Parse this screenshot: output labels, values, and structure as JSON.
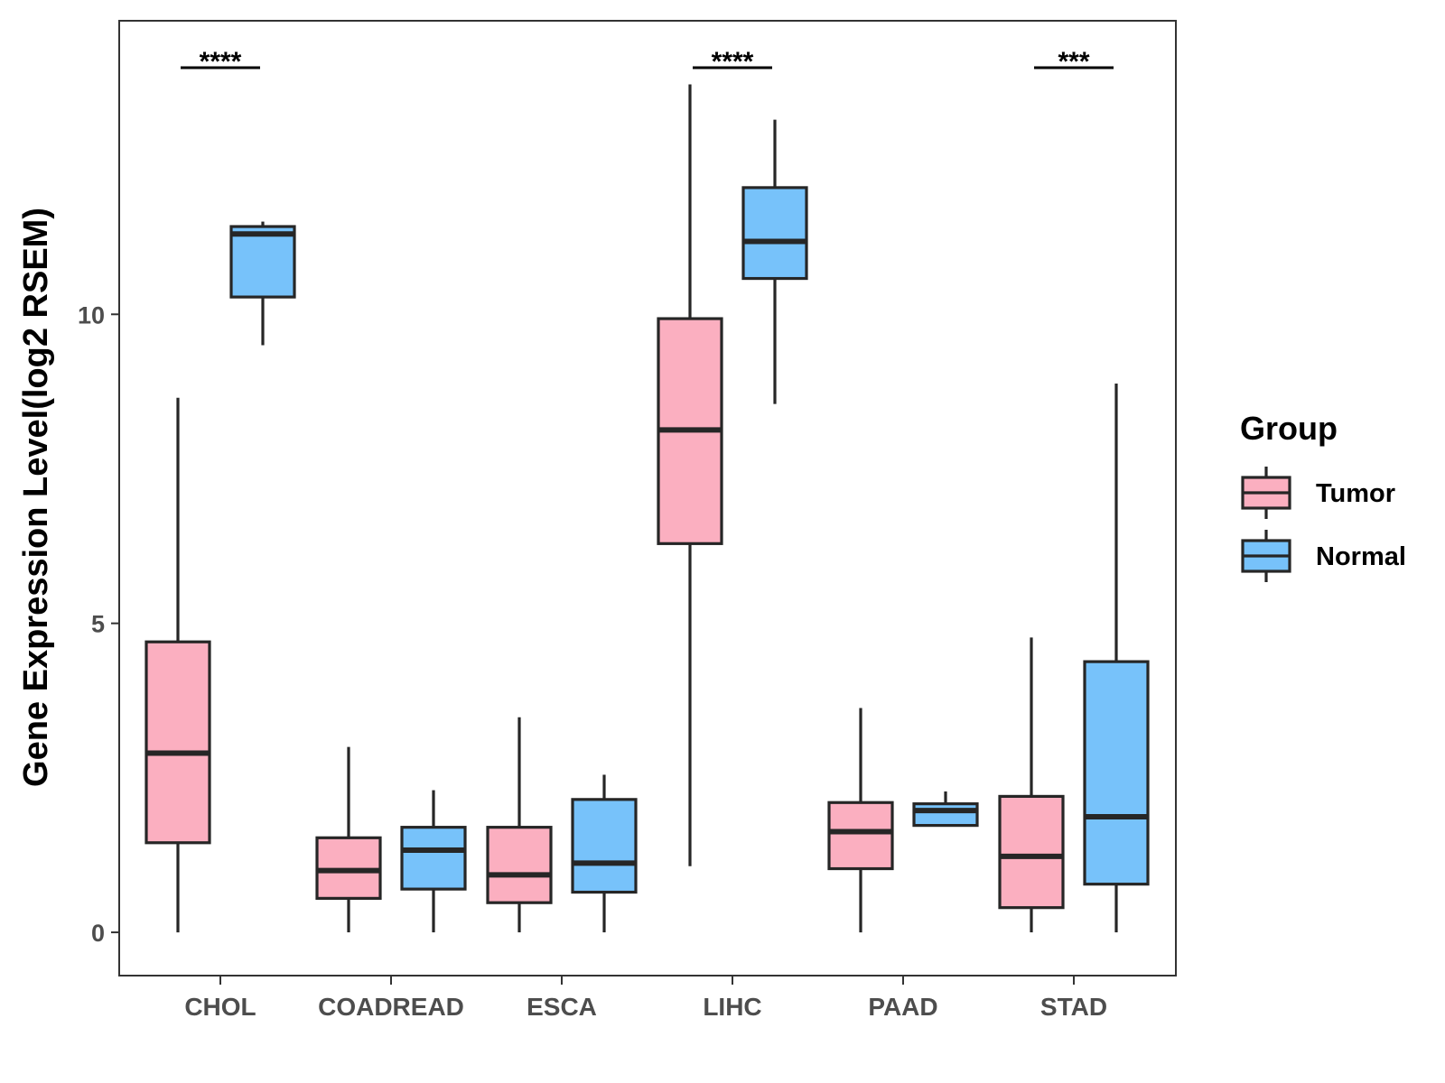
{
  "chart_data": {
    "type": "boxplot",
    "title": "",
    "xlabel": "",
    "ylabel": "Gene Expression Level(log2 RSEM)",
    "ylim": [
      -0.7,
      14.75
    ],
    "yticks": [
      0,
      5,
      10
    ],
    "categories": [
      "CHOL",
      "COADREAD",
      "ESCA",
      "LIHC",
      "PAAD",
      "STAD"
    ],
    "legend": {
      "title": "Group",
      "position": "right",
      "entries": [
        "Tumor",
        "Normal"
      ]
    },
    "colors": {
      "Tumor": "#fbafc0",
      "Normal": "#77c2fa",
      "outline": "#262626"
    },
    "series": [
      {
        "name": "Tumor",
        "boxes": [
          {
            "category": "CHOL",
            "min": 0.0,
            "q1": 1.45,
            "median": 2.9,
            "q3": 4.7,
            "max": 8.65
          },
          {
            "category": "COADREAD",
            "min": 0.0,
            "q1": 0.55,
            "median": 1.0,
            "q3": 1.53,
            "max": 3.0
          },
          {
            "category": "ESCA",
            "min": 0.0,
            "q1": 0.48,
            "median": 0.93,
            "q3": 1.7,
            "max": 3.48
          },
          {
            "category": "LIHC",
            "min": 1.07,
            "q1": 6.29,
            "median": 8.13,
            "q3": 9.93,
            "max": 13.72
          },
          {
            "category": "PAAD",
            "min": 0.0,
            "q1": 1.03,
            "median": 1.63,
            "q3": 2.1,
            "max": 3.63
          },
          {
            "category": "STAD",
            "min": 0.0,
            "q1": 0.4,
            "median": 1.23,
            "q3": 2.2,
            "max": 4.77
          }
        ]
      },
      {
        "name": "Normal",
        "boxes": [
          {
            "category": "CHOL",
            "min": 9.5,
            "q1": 10.28,
            "median": 11.3,
            "q3": 11.42,
            "max": 11.5
          },
          {
            "category": "COADREAD",
            "min": 0.0,
            "q1": 0.7,
            "median": 1.33,
            "q3": 1.7,
            "max": 2.3
          },
          {
            "category": "ESCA",
            "min": 0.0,
            "q1": 0.65,
            "median": 1.12,
            "q3": 2.15,
            "max": 2.55
          },
          {
            "category": "LIHC",
            "min": 8.55,
            "q1": 10.58,
            "median": 11.18,
            "q3": 12.05,
            "max": 13.15
          },
          {
            "category": "PAAD",
            "min": 1.73,
            "q1": 1.73,
            "median": 1.97,
            "q3": 2.08,
            "max": 2.28
          },
          {
            "category": "STAD",
            "min": 0.0,
            "q1": 0.78,
            "median": 1.87,
            "q3": 4.38,
            "max": 8.88
          }
        ]
      }
    ],
    "annotations": [
      {
        "category": "CHOL",
        "label": "****"
      },
      {
        "category": "LIHC",
        "label": "****"
      },
      {
        "category": "STAD",
        "label": "***"
      }
    ]
  }
}
